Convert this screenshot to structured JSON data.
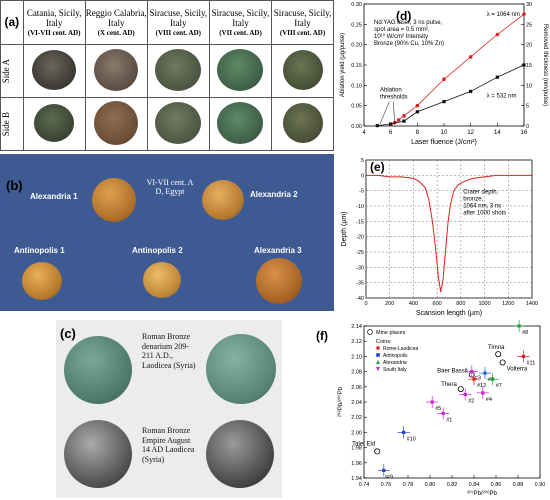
{
  "panel_a": {
    "label": "(a)",
    "columns": [
      {
        "place": "Catania, Sicily, Italy",
        "date": "(VI-VII cent. AD)"
      },
      {
        "place": "Reggio Calabria, Italy",
        "date": "(X cent. AD)"
      },
      {
        "place": "Siracuse, Sicily, Italy",
        "date": "(VIII cent. AD)"
      },
      {
        "place": "Siracuse, Sicily, Italy",
        "date": "(VII cent. AD)"
      },
      {
        "place": "Siracuse, Sicily, Italy",
        "date": "(VIII cent. AD)"
      }
    ],
    "rows": [
      "Side A",
      "Side B"
    ]
  },
  "panel_b": {
    "label": "(b)",
    "caption": "VI-VII cent. A D, Egypt",
    "coins": [
      "Alexandria 1",
      "Alexandria 2",
      "Antinopolis 1",
      "Antinopolis 2",
      "Alexandria 3"
    ]
  },
  "panel_c": {
    "label": "(c)",
    "text1": "Roman Bronze denarium 209-211 A.D., Laodicea (Syria)",
    "text2": "Roman Bronze Empire August 14 AD Laodicea (Syria)"
  },
  "panel_d": {
    "label": "(d)",
    "annotation": "Nd:YAG laser, 3 ns pulse, spot area = 0.5 mm², 10¹⁰ W/cm² Intensity Bronze (90% Cu, 10% Zn)",
    "ablation_label": "Ablation thresholds",
    "line_1064": "λ = 1064 nm",
    "line_532": "λ = 532 nm"
  },
  "panel_e": {
    "label": "(e)",
    "annotation": "Crater depth, bronze, 1064 nm, 3 ns after 1000 shots"
  },
  "panel_f": {
    "label": "(f)",
    "legend_mine": "Mine places",
    "legend_coins": "Coins:",
    "legend_series": [
      "Rome-Laodicea",
      "Antinopolis",
      "Alexandria",
      "South Italy"
    ],
    "mines": [
      "Timna",
      "Baer Bassit",
      "Thera",
      "Talet Eid",
      "Volterra"
    ]
  },
  "chart_data": [
    {
      "type": "line",
      "id": "d",
      "xlabel": "Laser fluence (J/cm²)",
      "ylabel": "Ablation yield (μg/pulse)",
      "ylabel2": "Removed thickness (nm/pulse)",
      "xlim": [
        4,
        16
      ],
      "ylim": [
        0,
        0.3
      ],
      "ylim2": [
        0,
        30
      ],
      "xticks": [
        4,
        6,
        8,
        10,
        12,
        14,
        16
      ],
      "yticks": [
        0.0,
        0.05,
        0.1,
        0.15,
        0.2,
        0.25,
        0.3
      ],
      "yticks2": [
        0,
        5,
        10,
        15,
        20,
        25,
        30
      ],
      "series": [
        {
          "name": "λ = 1064 nm",
          "color": "#e02020",
          "x": [
            6.0,
            6.3,
            6.6,
            7.0,
            8.0,
            10.0,
            12.0,
            14.0,
            16.0
          ],
          "y": [
            0.003,
            0.008,
            0.015,
            0.025,
            0.05,
            0.115,
            0.17,
            0.225,
            0.275
          ]
        },
        {
          "name": "λ = 532 nm",
          "color": "#111111",
          "x": [
            5.0,
            6.0,
            7.0,
            8.0,
            10.0,
            12.0,
            14.0,
            16.0
          ],
          "y": [
            0.001,
            0.005,
            0.012,
            0.035,
            0.06,
            0.085,
            0.12,
            0.15
          ]
        }
      ]
    },
    {
      "type": "line",
      "id": "e",
      "xlabel": "Scansion length (μm)",
      "ylabel": "Depth (μm)",
      "xlim": [
        0,
        1400
      ],
      "ylim": [
        -40,
        5
      ],
      "xticks": [
        0,
        200,
        400,
        600,
        800,
        1000,
        1200,
        1400
      ],
      "yticks": [
        -40,
        -35,
        -30,
        -25,
        -20,
        -15,
        -10,
        -5,
        0,
        5
      ],
      "series": [
        {
          "name": "profile",
          "color": "#e02020",
          "x": [
            0,
            100,
            200,
            300,
            400,
            450,
            500,
            530,
            560,
            590,
            610,
            630,
            650,
            670,
            690,
            710,
            740,
            780,
            830,
            900,
            1000,
            1100,
            1200,
            1300,
            1400
          ],
          "y": [
            0,
            0,
            -0.5,
            -0.5,
            -1,
            -2,
            -4,
            -8,
            -15,
            -25,
            -33,
            -38,
            -34,
            -25,
            -16,
            -10,
            -5,
            -3,
            -2,
            -1,
            -0.5,
            0,
            0,
            0,
            0
          ]
        }
      ]
    },
    {
      "type": "scatter",
      "id": "f",
      "xlabel": "²⁰⁷Pb/²⁰⁶Pb",
      "ylabel": "²⁰⁸Pb/²⁰⁶Pb",
      "xlim": [
        0.74,
        0.9
      ],
      "ylim": [
        1.94,
        2.14
      ],
      "xticks": [
        0.74,
        0.76,
        0.78,
        0.8,
        0.82,
        0.84,
        0.86,
        0.88,
        0.9
      ],
      "yticks": [
        1.94,
        1.96,
        1.98,
        2.0,
        2.02,
        2.04,
        2.06,
        2.08,
        2.1,
        2.12,
        2.14
      ],
      "mines": [
        {
          "name": "Timna",
          "x": 0.862,
          "y": 2.103
        },
        {
          "name": "Baer Bassit",
          "x": 0.838,
          "y": 2.076
        },
        {
          "name": "Thera",
          "x": 0.828,
          "y": 2.057
        },
        {
          "name": "Talet Eid",
          "x": 0.752,
          "y": 1.975
        },
        {
          "name": "Volterra",
          "x": 0.866,
          "y": 2.092
        }
      ],
      "points": [
        {
          "label": "#1",
          "x": 0.812,
          "y": 2.025,
          "color": "#d020d0"
        },
        {
          "label": "#2",
          "x": 0.832,
          "y": 2.05,
          "color": "#d020d0"
        },
        {
          "label": "#3",
          "x": 0.838,
          "y": 2.08,
          "color": "#d020d0"
        },
        {
          "label": "#4",
          "x": 0.848,
          "y": 2.052,
          "color": "#d020d0"
        },
        {
          "label": "#5",
          "x": 0.802,
          "y": 2.04,
          "color": "#d020d0"
        },
        {
          "label": "#6",
          "x": 0.85,
          "y": 2.078,
          "color": "#2060d0"
        },
        {
          "label": "#7",
          "x": 0.857,
          "y": 2.07,
          "color": "#20a040"
        },
        {
          "label": "#8",
          "x": 0.881,
          "y": 2.14,
          "color": "#20a040"
        },
        {
          "label": "#9",
          "x": 0.758,
          "y": 1.95,
          "color": "#2040d0"
        },
        {
          "label": "#10",
          "x": 0.776,
          "y": 2.0,
          "color": "#2040d0"
        },
        {
          "label": "#11",
          "x": 0.885,
          "y": 2.1,
          "color": "#e02020"
        },
        {
          "label": "#12",
          "x": 0.84,
          "y": 2.07,
          "color": "#e02020"
        }
      ]
    }
  ]
}
